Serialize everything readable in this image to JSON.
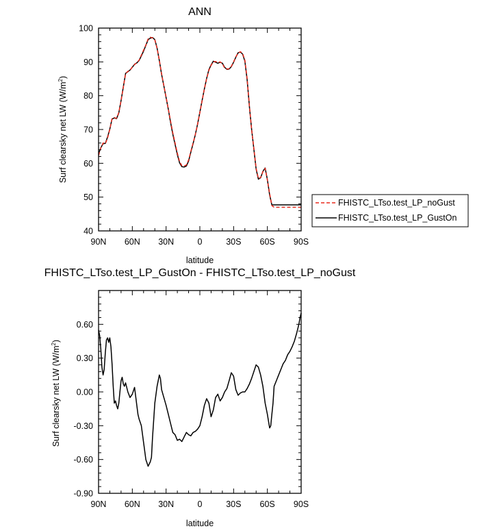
{
  "chart_data": [
    {
      "type": "line",
      "title": "ANN",
      "xlabel": "latitude",
      "ylabel": "Surf clearsky net LW (W/m",
      "ylabel_sup": "2",
      "ylabel_close": ")",
      "xlim": [
        90,
        -90
      ],
      "ylim": [
        40,
        100
      ],
      "xtick_values": [
        90,
        60,
        30,
        0,
        -30,
        -60,
        -90
      ],
      "xtick_labels": [
        "90N",
        "60N",
        "30N",
        "0",
        "30S",
        "60S",
        "90S"
      ],
      "ytick_values": [
        40,
        50,
        60,
        70,
        80,
        90,
        100
      ],
      "ytick_labels": [
        "40",
        "50",
        "60",
        "70",
        "80",
        "90",
        "100"
      ],
      "x": [
        90,
        88,
        86,
        84,
        82,
        80,
        78,
        76,
        74,
        72,
        70,
        68,
        66,
        64,
        62,
        60,
        58,
        56,
        54,
        52,
        50,
        48,
        46,
        44,
        42,
        40,
        38,
        36,
        34,
        32,
        30,
        28,
        26,
        24,
        22,
        20,
        18,
        16,
        14,
        12,
        10,
        8,
        6,
        4,
        2,
        0,
        -2,
        -4,
        -6,
        -8,
        -10,
        -12,
        -14,
        -16,
        -18,
        -20,
        -22,
        -24,
        -26,
        -28,
        -30,
        -32,
        -34,
        -36,
        -38,
        -40,
        -42,
        -44,
        -46,
        -48,
        -50,
        -52,
        -54,
        -56,
        -58,
        -60,
        -62,
        -64,
        -66,
        -68,
        -70,
        -72,
        -74,
        -76,
        -78,
        -80,
        -82,
        -84,
        -86,
        -88,
        -90
      ],
      "series": [
        {
          "name": "FHISTC_LTso.test_LP_noGust",
          "color": "#e8291c",
          "dash": "dashed",
          "values": [
            62.3,
            64.5,
            66.0,
            65.8,
            67.5,
            70.0,
            73.2,
            73.5,
            73.3,
            75.0,
            78.5,
            82.5,
            86.5,
            87.2,
            87.5,
            88.5,
            89.2,
            89.8,
            90.5,
            92.0,
            93.5,
            95.0,
            96.8,
            97.3,
            97.1,
            96.5,
            94.0,
            90.5,
            86.5,
            83.0,
            79.5,
            76.0,
            72.5,
            69.0,
            66.0,
            63.0,
            60.5,
            59.3,
            59.2,
            59.5,
            61.0,
            63.5,
            66.0,
            68.5,
            71.5,
            75.0,
            78.5,
            82.0,
            85.0,
            87.5,
            89.0,
            90.0,
            90.1,
            89.8,
            90.0,
            89.5,
            88.2,
            87.9,
            88.0,
            88.7,
            90.0,
            91.5,
            92.6,
            93.0,
            92.5,
            90.5,
            85.0,
            77.0,
            70.0,
            64.5,
            58.5,
            55.5,
            55.8,
            57.5,
            58.5,
            55.0,
            51.0,
            47.5,
            47.0,
            47.0,
            47.0,
            47.0,
            47.0,
            47.0,
            47.0,
            47.0,
            47.0,
            47.0,
            47.0,
            47.0,
            47.0
          ]
        },
        {
          "name": "FHISTC_LTso.test_LP_GustOn",
          "color": "#000000",
          "dash": "solid",
          "values": [
            62.8,
            64.6,
            65.8,
            65.9,
            67.8,
            70.1,
            73.1,
            73.4,
            73.2,
            74.9,
            78.6,
            82.6,
            86.6,
            87.1,
            87.6,
            88.4,
            89.3,
            89.7,
            90.4,
            91.8,
            93.2,
            94.9,
            96.6,
            97.0,
            97.2,
            96.6,
            94.1,
            90.4,
            86.3,
            82.9,
            79.4,
            75.9,
            72.1,
            68.6,
            65.6,
            62.6,
            60.1,
            59.0,
            58.9,
            59.2,
            60.7,
            63.3,
            65.8,
            68.5,
            71.6,
            75.1,
            78.6,
            82.0,
            85.1,
            87.7,
            89.1,
            90.2,
            89.9,
            89.6,
            89.9,
            89.6,
            88.4,
            87.8,
            87.9,
            88.6,
            89.9,
            91.4,
            92.7,
            92.9,
            92.3,
            90.2,
            84.7,
            76.8,
            70.1,
            64.2,
            58.3,
            55.3,
            55.7,
            57.6,
            58.6,
            55.1,
            50.6,
            47.7,
            47.7,
            47.7,
            47.7,
            47.7,
            47.7,
            47.7,
            47.7,
            47.7,
            47.7,
            47.7,
            47.7,
            47.7,
            47.7
          ]
        }
      ],
      "legend_position": "right"
    },
    {
      "type": "line",
      "title": "FHISTC_LTso.test_LP_GustOn - FHISTC_LTso.test_LP_noGust",
      "xlabel": "latitude",
      "ylabel": "Surf clearsky net LW (W/m",
      "ylabel_sup": "2",
      "ylabel_close": ")",
      "xlim": [
        90,
        -90
      ],
      "ylim": [
        -0.9,
        0.9
      ],
      "xtick_values": [
        90,
        60,
        30,
        0,
        -30,
        -60,
        -90
      ],
      "xtick_labels": [
        "90N",
        "60N",
        "30N",
        "0",
        "30S",
        "60S",
        "90S"
      ],
      "ytick_values": [
        -0.9,
        -0.6,
        -0.3,
        0.0,
        0.3,
        0.6
      ],
      "ytick_labels": [
        "-0.90",
        "-0.60",
        "-0.30",
        "0.00",
        "0.30",
        "0.60"
      ],
      "x": [
        90,
        89,
        88,
        87,
        86,
        85,
        84,
        83,
        82,
        81,
        80,
        79,
        78,
        77,
        76,
        75,
        74,
        73,
        72,
        71,
        70,
        69,
        68,
        67,
        66,
        64,
        62,
        60,
        58,
        56,
        55,
        54,
        52,
        50,
        48,
        46,
        44,
        43,
        42,
        40,
        38,
        36,
        35,
        34,
        32,
        30,
        28,
        26,
        24,
        22,
        20,
        18,
        16,
        14,
        12,
        10,
        8,
        6,
        4,
        2,
        0,
        -2,
        -4,
        -6,
        -8,
        -10,
        -12,
        -14,
        -16,
        -18,
        -20,
        -22,
        -24,
        -26,
        -28,
        -30,
        -32,
        -34,
        -36,
        -38,
        -40,
        -42,
        -44,
        -46,
        -48,
        -50,
        -52,
        -54,
        -56,
        -58,
        -60,
        -61,
        -62,
        -63,
        -64,
        -65,
        -66,
        -68,
        -70,
        -72,
        -74,
        -76,
        -78,
        -80,
        -82,
        -84,
        -86,
        -88,
        -89,
        -90
      ],
      "series": [
        {
          "name": "FHISTC_LTso.test_LP_GustOn - FHISTC_LTso.test_LP_noGust",
          "color": "#000000",
          "dash": "solid",
          "values": [
            0.55,
            0.5,
            0.38,
            0.22,
            0.15,
            0.2,
            0.35,
            0.46,
            0.48,
            0.44,
            0.48,
            0.4,
            0.25,
            0.05,
            -0.1,
            -0.08,
            -0.12,
            -0.15,
            -0.1,
            0.0,
            0.1,
            0.13,
            0.07,
            0.05,
            0.08,
            0.0,
            -0.05,
            -0.02,
            0.04,
            -0.12,
            -0.2,
            -0.24,
            -0.3,
            -0.45,
            -0.6,
            -0.66,
            -0.62,
            -0.58,
            -0.4,
            -0.1,
            0.05,
            0.15,
            0.12,
            0.02,
            -0.05,
            -0.12,
            -0.2,
            -0.28,
            -0.36,
            -0.38,
            -0.43,
            -0.42,
            -0.44,
            -0.4,
            -0.36,
            -0.38,
            -0.39,
            -0.36,
            -0.35,
            -0.33,
            -0.3,
            -0.22,
            -0.12,
            -0.06,
            -0.1,
            -0.22,
            -0.16,
            -0.05,
            -0.02,
            -0.08,
            -0.05,
            0.0,
            0.03,
            0.1,
            0.17,
            0.14,
            0.02,
            -0.03,
            -0.01,
            0.0,
            0.0,
            0.03,
            0.07,
            0.12,
            0.18,
            0.24,
            0.22,
            0.15,
            0.05,
            -0.1,
            -0.2,
            -0.26,
            -0.32,
            -0.3,
            -0.2,
            -0.1,
            0.05,
            0.1,
            0.15,
            0.2,
            0.25,
            0.28,
            0.33,
            0.36,
            0.4,
            0.45,
            0.52,
            0.6,
            0.66,
            0.7
          ]
        }
      ]
    }
  ]
}
